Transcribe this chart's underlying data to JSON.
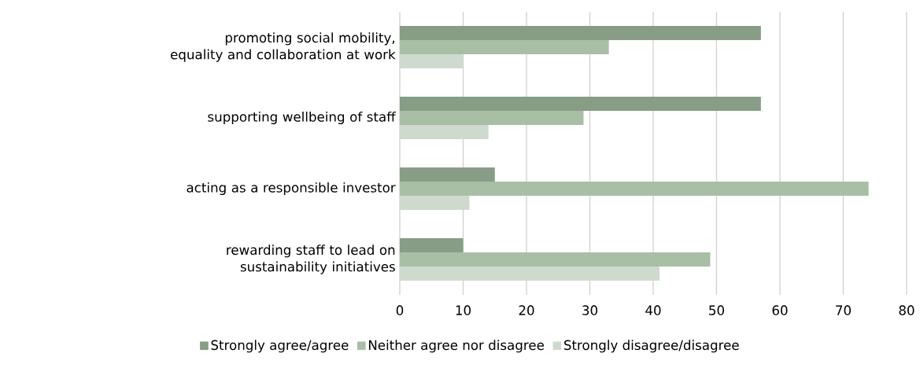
{
  "chart_data": {
    "type": "bar",
    "orientation": "horizontal",
    "categories": [
      "promoting social mobility, equality and collaboration at work",
      "supporting wellbeing of staff",
      "acting as a responsible investor",
      "rewarding staff to lead on sustainability initiatives"
    ],
    "series": [
      {
        "name": "Strongly agree/agree",
        "color": "#879d86",
        "values": [
          57,
          57,
          15,
          10
        ]
      },
      {
        "name": "Neither agree nor disagree",
        "color": "#a8bfa5",
        "values": [
          33,
          29,
          74,
          49
        ]
      },
      {
        "name": "Strongly disagree/disagree",
        "color": "#cfdacf",
        "values": [
          10,
          14,
          11,
          41
        ]
      }
    ],
    "xlim": [
      0,
      80
    ],
    "xticks": [
      0,
      10,
      20,
      30,
      40,
      50,
      60,
      70,
      80
    ],
    "grid": "x",
    "legend": "bottom"
  }
}
